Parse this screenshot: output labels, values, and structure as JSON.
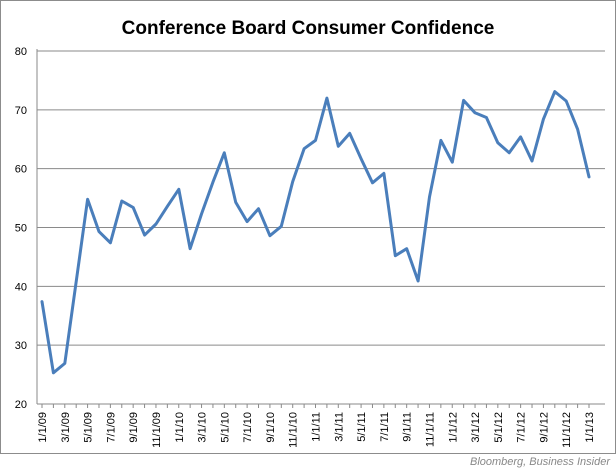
{
  "chart_data": {
    "type": "line",
    "title": "Conference Board Consumer Confidence",
    "xlabel": "",
    "ylabel": "",
    "ylim": [
      20,
      80
    ],
    "yticks": [
      "20",
      "30",
      "40",
      "50",
      "60",
      "70",
      "80"
    ],
    "xtick_labels": [
      "1/1/09",
      "3/1/09",
      "5/1/09",
      "7/1/09",
      "9/1/09",
      "11/1/09",
      "1/1/10",
      "3/1/10",
      "5/1/10",
      "7/1/10",
      "9/1/10",
      "11/1/10",
      "1/1/11",
      "3/1/11",
      "5/1/11",
      "7/1/11",
      "9/1/11",
      "11/1/11",
      "1/1/12",
      "3/1/12",
      "5/1/12",
      "7/1/12",
      "9/1/12",
      "11/1/12",
      "1/1/13"
    ],
    "grid": "horizontal",
    "legend": "none",
    "line_color": "#4a7ebb",
    "x": [
      "1/1/09",
      "2/1/09",
      "3/1/09",
      "4/1/09",
      "5/1/09",
      "6/1/09",
      "7/1/09",
      "8/1/09",
      "9/1/09",
      "10/1/09",
      "11/1/09",
      "12/1/09",
      "1/1/10",
      "2/1/10",
      "3/1/10",
      "4/1/10",
      "5/1/10",
      "6/1/10",
      "7/1/10",
      "8/1/10",
      "9/1/10",
      "10/1/10",
      "11/1/10",
      "12/1/10",
      "1/1/11",
      "2/1/11",
      "3/1/11",
      "4/1/11",
      "5/1/11",
      "6/1/11",
      "7/1/11",
      "8/1/11",
      "9/1/11",
      "10/1/11",
      "11/1/11",
      "12/1/11",
      "1/1/12",
      "2/1/12",
      "3/1/12",
      "4/1/12",
      "5/1/12",
      "6/1/12",
      "7/1/12",
      "8/1/12",
      "9/1/12",
      "10/1/12",
      "11/1/12",
      "12/1/12",
      "1/1/13"
    ],
    "values": [
      37.4,
      25.3,
      26.9,
      40.8,
      54.8,
      49.3,
      47.4,
      54.5,
      53.4,
      48.7,
      50.6,
      53.6,
      56.5,
      46.4,
      52.3,
      57.7,
      62.7,
      54.3,
      51.0,
      53.2,
      48.6,
      50.2,
      57.8,
      63.4,
      64.8,
      72.0,
      63.8,
      66.0,
      61.7,
      57.6,
      59.2,
      45.2,
      46.4,
      40.9,
      55.2,
      64.8,
      61.1,
      71.6,
      69.5,
      68.7,
      64.4,
      62.7,
      65.4,
      61.3,
      68.4,
      73.1,
      71.5,
      66.7,
      58.6
    ]
  },
  "source_note": "Bloomberg, Business Insider"
}
